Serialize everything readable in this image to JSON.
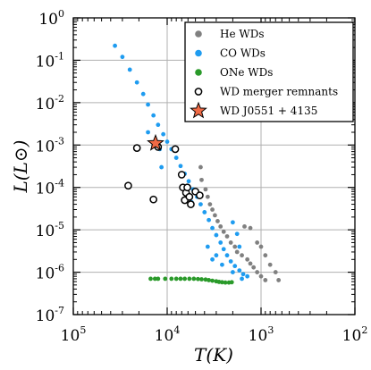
{
  "chart_data": {
    "type": "scatter",
    "title": "",
    "xlabel": "T(K)",
    "ylabel": "L(L⊙)",
    "x_scale": "log",
    "y_scale": "log",
    "x_reversed": true,
    "xlim": [
      100000,
      100
    ],
    "ylim": [
      1e-07,
      1
    ],
    "grid": true,
    "legend_position": "top-right",
    "x_ticks": [
      {
        "base": "10",
        "exp": "5"
      },
      {
        "base": "10",
        "exp": "4"
      },
      {
        "base": "10",
        "exp": "3"
      },
      {
        "base": "10",
        "exp": "2"
      }
    ],
    "y_ticks": [
      {
        "base": "10",
        "exp": "0"
      },
      {
        "base": "10",
        "exp": "-1"
      },
      {
        "base": "10",
        "exp": "-2"
      },
      {
        "base": "10",
        "exp": "-3"
      },
      {
        "base": "10",
        "exp": "-4"
      },
      {
        "base": "10",
        "exp": "-5"
      },
      {
        "base": "10",
        "exp": "-6"
      },
      {
        "base": "10",
        "exp": "-7"
      }
    ],
    "series": [
      {
        "name": "He WDs",
        "marker": "filled-circle",
        "color": "#808080",
        "points": [
          [
            4400,
            0.0003
          ],
          [
            4300,
            0.00015
          ],
          [
            3900,
            9e-05
          ],
          [
            3700,
            6e-05
          ],
          [
            3500,
            4e-05
          ],
          [
            3300,
            3e-05
          ],
          [
            3100,
            2.2e-05
          ],
          [
            2900,
            1.6e-05
          ],
          [
            2700,
            1.2e-05
          ],
          [
            2500,
            9e-06
          ],
          [
            2300,
            7e-06
          ],
          [
            2100,
            5e-06
          ],
          [
            1900,
            4e-06
          ],
          [
            1800,
            3e-06
          ],
          [
            1600,
            2.5e-06
          ],
          [
            1400,
            2e-06
          ],
          [
            1300,
            1.6e-06
          ],
          [
            1200,
            1.3e-06
          ],
          [
            1100,
            1e-06
          ],
          [
            1000,
            8e-07
          ],
          [
            900,
            6.5e-07
          ],
          [
            1500,
            1.2e-05
          ],
          [
            1300,
            1.1e-05
          ],
          [
            1100,
            5e-06
          ],
          [
            1000,
            4e-06
          ],
          [
            900,
            2.5e-06
          ],
          [
            800,
            1.5e-06
          ],
          [
            700,
            1e-06
          ],
          [
            650,
            6.5e-07
          ]
        ]
      },
      {
        "name": "CO WDs",
        "marker": "filled-circle",
        "color": "#1f9cf0",
        "points": [
          [
            36000,
            0.22
          ],
          [
            30000,
            0.12
          ],
          [
            25000,
            0.06
          ],
          [
            21000,
            0.03
          ],
          [
            18000,
            0.016
          ],
          [
            16000,
            0.009
          ],
          [
            14000,
            0.005
          ],
          [
            12500,
            0.003
          ],
          [
            11000,
            0.0018
          ],
          [
            10000,
            0.0012
          ],
          [
            9000,
            0.0008
          ],
          [
            8000,
            0.0005
          ],
          [
            7200,
            0.00032
          ],
          [
            6500,
            0.00021
          ],
          [
            5900,
            0.00014
          ],
          [
            5300,
            9e-05
          ],
          [
            4800,
            6e-05
          ],
          [
            4400,
            4e-05
          ],
          [
            4000,
            2.6e-05
          ],
          [
            3600,
            1.7e-05
          ],
          [
            3300,
            1.1e-05
          ],
          [
            3000,
            7.5e-06
          ],
          [
            2700,
            5e-06
          ],
          [
            2500,
            3.5e-06
          ],
          [
            2300,
            2.5e-06
          ],
          [
            2100,
            1.8e-06
          ],
          [
            1900,
            1.4e-06
          ],
          [
            1700,
            1.1e-06
          ],
          [
            1550,
            9e-07
          ],
          [
            1400,
            8e-07
          ],
          [
            16000,
            0.002
          ],
          [
            12000,
            0.0008
          ],
          [
            11500,
            0.0003
          ],
          [
            5500,
            4.5e-05
          ],
          [
            4500,
            6.5e-05
          ],
          [
            3700,
            4e-06
          ],
          [
            3000,
            2.5e-06
          ],
          [
            2600,
            1.5e-06
          ],
          [
            2000,
            1.5e-05
          ],
          [
            1800,
            8e-06
          ],
          [
            1700,
            4e-06
          ],
          [
            1600,
            7e-07
          ],
          [
            2000,
            1e-06
          ],
          [
            3300,
            2e-06
          ]
        ]
      },
      {
        "name": "ONe WDs",
        "marker": "filled-circle",
        "color": "#2a9a2a",
        "points": [
          [
            15000,
            7e-07
          ],
          [
            13500,
            7e-07
          ],
          [
            12500,
            7e-07
          ],
          [
            10500,
            7e-07
          ],
          [
            9000,
            7e-07
          ],
          [
            8000,
            7e-07
          ],
          [
            7200,
            7e-07
          ],
          [
            6500,
            7e-07
          ],
          [
            5800,
            7e-07
          ],
          [
            5200,
            7e-07
          ],
          [
            4700,
            6.9e-07
          ],
          [
            4300,
            6.8e-07
          ],
          [
            3900,
            6.7e-07
          ],
          [
            3600,
            6.5e-07
          ],
          [
            3300,
            6.3e-07
          ],
          [
            3000,
            6.1e-07
          ],
          [
            2800,
            5.9e-07
          ],
          [
            2600,
            5.8e-07
          ],
          [
            2400,
            5.7e-07
          ],
          [
            2200,
            5.7e-07
          ],
          [
            2050,
            5.8e-07
          ]
        ]
      },
      {
        "name": "WD merger remnants",
        "marker": "open-circle",
        "color": "#000000",
        "points": [
          [
            26000,
            0.00011
          ],
          [
            21000,
            0.00085
          ],
          [
            14000,
            5.2e-05
          ],
          [
            12500,
            0.0009
          ],
          [
            8200,
            0.0008
          ],
          [
            7000,
            0.0002
          ],
          [
            6800,
            0.0001
          ],
          [
            6500,
            5e-05
          ],
          [
            6300,
            7.5e-05
          ],
          [
            6100,
            0.0001
          ],
          [
            5800,
            6e-05
          ],
          [
            5600,
            4e-05
          ],
          [
            5000,
            8e-05
          ],
          [
            4500,
            6.5e-05
          ]
        ]
      },
      {
        "name": "WD J0551 + 4135",
        "marker": "star",
        "color": "#f06a45",
        "points": [
          [
            13300,
            0.0011
          ]
        ]
      }
    ]
  }
}
